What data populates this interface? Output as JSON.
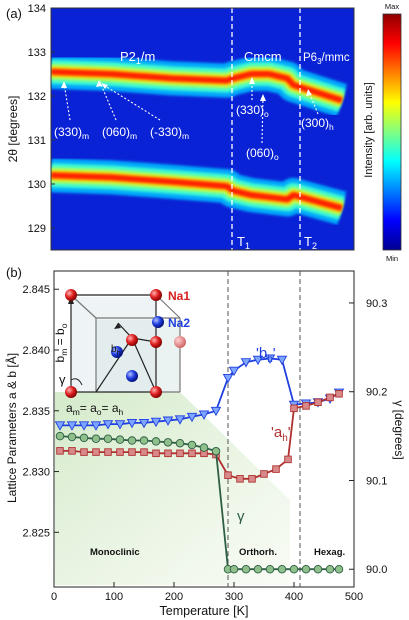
{
  "chart_data": [
    {
      "type": "heatmap",
      "panel_label": "(a)",
      "ylabel": "2θ [degrees]",
      "ylim": [
        128.5,
        134
      ],
      "y_ticks": [
        129,
        130,
        131,
        132,
        133,
        134
      ],
      "colorbar": {
        "label": "Intensity [arb. units]",
        "max_label": "Max",
        "min_label": "Min",
        "colors": [
          "#00008f",
          "#0000ff",
          "#0080ff",
          "#00ffff",
          "#80ff80",
          "#ffff00",
          "#ff8000",
          "#ff0000",
          "#8f0000"
        ]
      },
      "phase_labels": [
        {
          "main": "P2",
          "sub": "1",
          "tail": "/m"
        },
        {
          "main": "Cmcm",
          "sub": "",
          "tail": ""
        },
        {
          "main": "P6",
          "sub": "3",
          "tail": "/mmc"
        }
      ],
      "transition_labels": [
        {
          "main": "T",
          "sub": "1"
        },
        {
          "main": "T",
          "sub": "2"
        }
      ],
      "peak_labels": [
        {
          "main": "(330)",
          "sub": "m"
        },
        {
          "main": "(060)",
          "sub": "m"
        },
        {
          "main": "(-330)",
          "sub": "m"
        },
        {
          "main": "(330)",
          "sub": "o"
        },
        {
          "main": "(060)",
          "sub": "o"
        },
        {
          "main": "(300)",
          "sub": "h"
        }
      ],
      "bands": [
        {
          "temperature": [
            0,
            100,
            200,
            290,
            300,
            330,
            360,
            390,
            400,
            480
          ],
          "two_theta": [
            132.55,
            132.5,
            132.4,
            132.35,
            132.4,
            132.5,
            132.5,
            132.4,
            132.25,
            131.9
          ]
        },
        {
          "temperature": [
            0,
            100,
            200,
            290,
            300,
            330,
            360,
            390,
            400,
            480
          ],
          "two_theta": [
            130.2,
            130.15,
            130.05,
            129.95,
            129.85,
            129.75,
            129.7,
            129.65,
            129.75,
            129.45
          ]
        }
      ]
    },
    {
      "type": "scatter",
      "panel_label": "(b)",
      "xlabel": "Temperature [K]",
      "ylabel": "Lattice Parameters a & b [Å]",
      "y2label": "γ [degrees]",
      "xlim": [
        0,
        500
      ],
      "ylim": [
        2.8205,
        2.8465
      ],
      "y2lim": [
        89.98,
        90.336
      ],
      "x_ticks": [
        0,
        100,
        200,
        300,
        400,
        500
      ],
      "y_ticks": [
        2.825,
        2.83,
        2.835,
        2.84,
        2.845
      ],
      "y2_ticks": [
        90.0,
        90.1,
        90.2,
        90.3
      ],
      "transitions": [
        290,
        400
      ],
      "phase_regions": [
        "Monoclinic",
        "Orthorh.",
        "Hexag."
      ],
      "series": [
        {
          "name": "'bh'",
          "axis": "left",
          "marker": "triangle-down",
          "color": "#1f3fe0",
          "x": [
            10,
            30,
            50,
            70,
            90,
            110,
            130,
            150,
            170,
            190,
            210,
            230,
            250,
            270,
            290,
            300,
            320,
            340,
            360,
            380,
            400,
            420,
            440,
            460,
            475
          ],
          "y": [
            2.8338,
            2.8338,
            2.8338,
            2.8338,
            2.8339,
            2.8339,
            2.834,
            2.834,
            2.8341,
            2.8342,
            2.8343,
            2.8345,
            2.8347,
            2.835,
            2.8377,
            2.8383,
            2.839,
            2.8392,
            2.8393,
            2.8392,
            2.8355,
            2.8356,
            2.8357,
            2.836,
            2.8365
          ]
        },
        {
          "name": "'ah'",
          "axis": "left",
          "marker": "square",
          "color": "#b03030",
          "x": [
            10,
            30,
            50,
            70,
            90,
            110,
            130,
            150,
            170,
            190,
            210,
            230,
            250,
            270,
            290,
            310,
            330,
            350,
            370,
            390,
            400,
            420,
            440,
            460,
            475
          ],
          "y": [
            2.8317,
            2.8317,
            2.8316,
            2.8316,
            2.8316,
            2.8316,
            2.8316,
            2.8316,
            2.8315,
            2.8315,
            2.8315,
            2.8315,
            2.8315,
            2.8314,
            2.8297,
            2.8294,
            2.8294,
            2.8298,
            2.8302,
            2.831,
            2.8352,
            2.8354,
            2.8357,
            2.8361,
            2.8364
          ]
        },
        {
          "name": "γ",
          "axis": "right",
          "marker": "circle",
          "color": "#2e5e44",
          "x": [
            10,
            30,
            50,
            70,
            90,
            110,
            130,
            150,
            170,
            190,
            210,
            230,
            250,
            270,
            290,
            300,
            320,
            340,
            360,
            380,
            400,
            420,
            440,
            460,
            475
          ],
          "y": [
            90.15,
            90.149,
            90.148,
            90.147,
            90.147,
            90.146,
            90.145,
            90.145,
            90.144,
            90.143,
            90.142,
            90.14,
            90.137,
            90.133,
            90.0,
            90.0,
            90.0,
            90.0,
            90.0,
            90.0,
            90.0,
            90.0,
            90.0,
            90.0,
            90.0
          ]
        }
      ],
      "series_labels": [
        {
          "main": "'b",
          "sub": "h",
          "tail": "'"
        },
        {
          "main": "'a",
          "sub": "h",
          "tail": "'"
        },
        {
          "main": "γ",
          "sub": "",
          "tail": ""
        }
      ],
      "inset": {
        "atom_labels": [
          "Na1",
          "Na2"
        ],
        "atom_colors": [
          "#d62020",
          "#1f3fe0"
        ],
        "bm_label": {
          "main": "b",
          "sub1": "m",
          "mid": " = b",
          "sub2": "o"
        },
        "am_label": {
          "main": "a",
          "sub1": "m",
          "mid1": "= a",
          "sub2": "o",
          "mid2": "= a",
          "sub3": "h"
        },
        "bh_label": {
          "main": "b",
          "sub": "h"
        },
        "gamma_label": "γ"
      }
    }
  ]
}
